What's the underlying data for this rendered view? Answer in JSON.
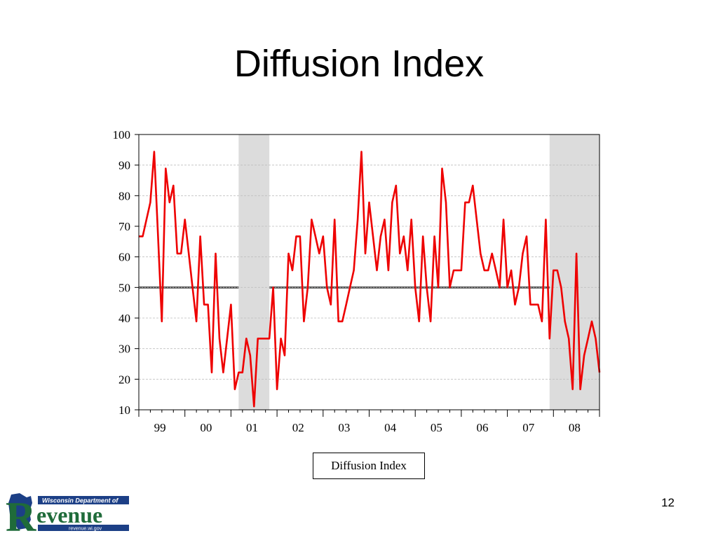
{
  "slide": {
    "title": "Diffusion Index",
    "page_number": "12"
  },
  "logo": {
    "big_letter": "R",
    "word": "evenue",
    "top_text": "Wisconsin Department of",
    "bottom_text": "revenue.wi.gov",
    "colors": {
      "green": "#1f6b3a",
      "blue": "#1c3f86"
    }
  },
  "colors": {
    "line": "#ee0000",
    "recession_shade": "#dcdcdc",
    "reference_line": "#555555"
  },
  "chart_data": {
    "type": "line",
    "title": "",
    "xlabel": "",
    "ylabel": "",
    "ylim": [
      10,
      100
    ],
    "yticks": [
      10,
      20,
      30,
      40,
      50,
      60,
      70,
      80,
      90,
      100
    ],
    "x_tick_labels": [
      "99",
      "00",
      "01",
      "02",
      "03",
      "04",
      "05",
      "06",
      "07",
      "08"
    ],
    "x_start": "1999-01",
    "legend": [
      "Diffusion Index"
    ],
    "legend_position": "bottom-center",
    "grid": true,
    "reference_line": 50,
    "recession_periods": [
      {
        "start": "2001-03",
        "end": "2001-11"
      },
      {
        "start": "2007-12",
        "end": "2009-03"
      }
    ],
    "series": [
      {
        "name": "Diffusion Index",
        "values": [
          66.7,
          66.7,
          72.2,
          77.8,
          94.4,
          66.7,
          38.9,
          88.9,
          77.8,
          83.3,
          61.1,
          61.1,
          72.2,
          61.1,
          50.0,
          38.9,
          66.7,
          44.4,
          44.4,
          22.2,
          61.1,
          33.3,
          22.2,
          33.3,
          44.4,
          16.7,
          22.2,
          22.2,
          33.3,
          27.8,
          11.1,
          33.3,
          33.3,
          33.3,
          33.3,
          50.0,
          16.7,
          33.3,
          27.8,
          61.1,
          55.6,
          66.7,
          66.7,
          38.9,
          50.0,
          72.2,
          66.7,
          61.1,
          66.7,
          50.0,
          44.4,
          72.2,
          38.9,
          38.9,
          44.4,
          50.0,
          55.6,
          72.2,
          94.4,
          61.1,
          77.8,
          66.7,
          55.6,
          66.7,
          72.2,
          55.6,
          77.8,
          83.3,
          61.1,
          66.7,
          55.6,
          72.2,
          50.0,
          38.9,
          66.7,
          50.0,
          38.9,
          66.7,
          50.0,
          88.9,
          77.8,
          50.0,
          55.6,
          55.6,
          55.6,
          77.8,
          77.8,
          83.3,
          72.2,
          61.1,
          55.6,
          55.6,
          61.1,
          55.6,
          50.0,
          72.2,
          50.0,
          55.6,
          44.4,
          50.0,
          61.1,
          66.7,
          44.4,
          44.4,
          44.4,
          38.9,
          72.2,
          33.3,
          55.6,
          55.6,
          50.0,
          38.9,
          33.3,
          16.7,
          61.1,
          16.7,
          27.8,
          33.3,
          38.9,
          33.3,
          22.2
        ]
      }
    ]
  }
}
